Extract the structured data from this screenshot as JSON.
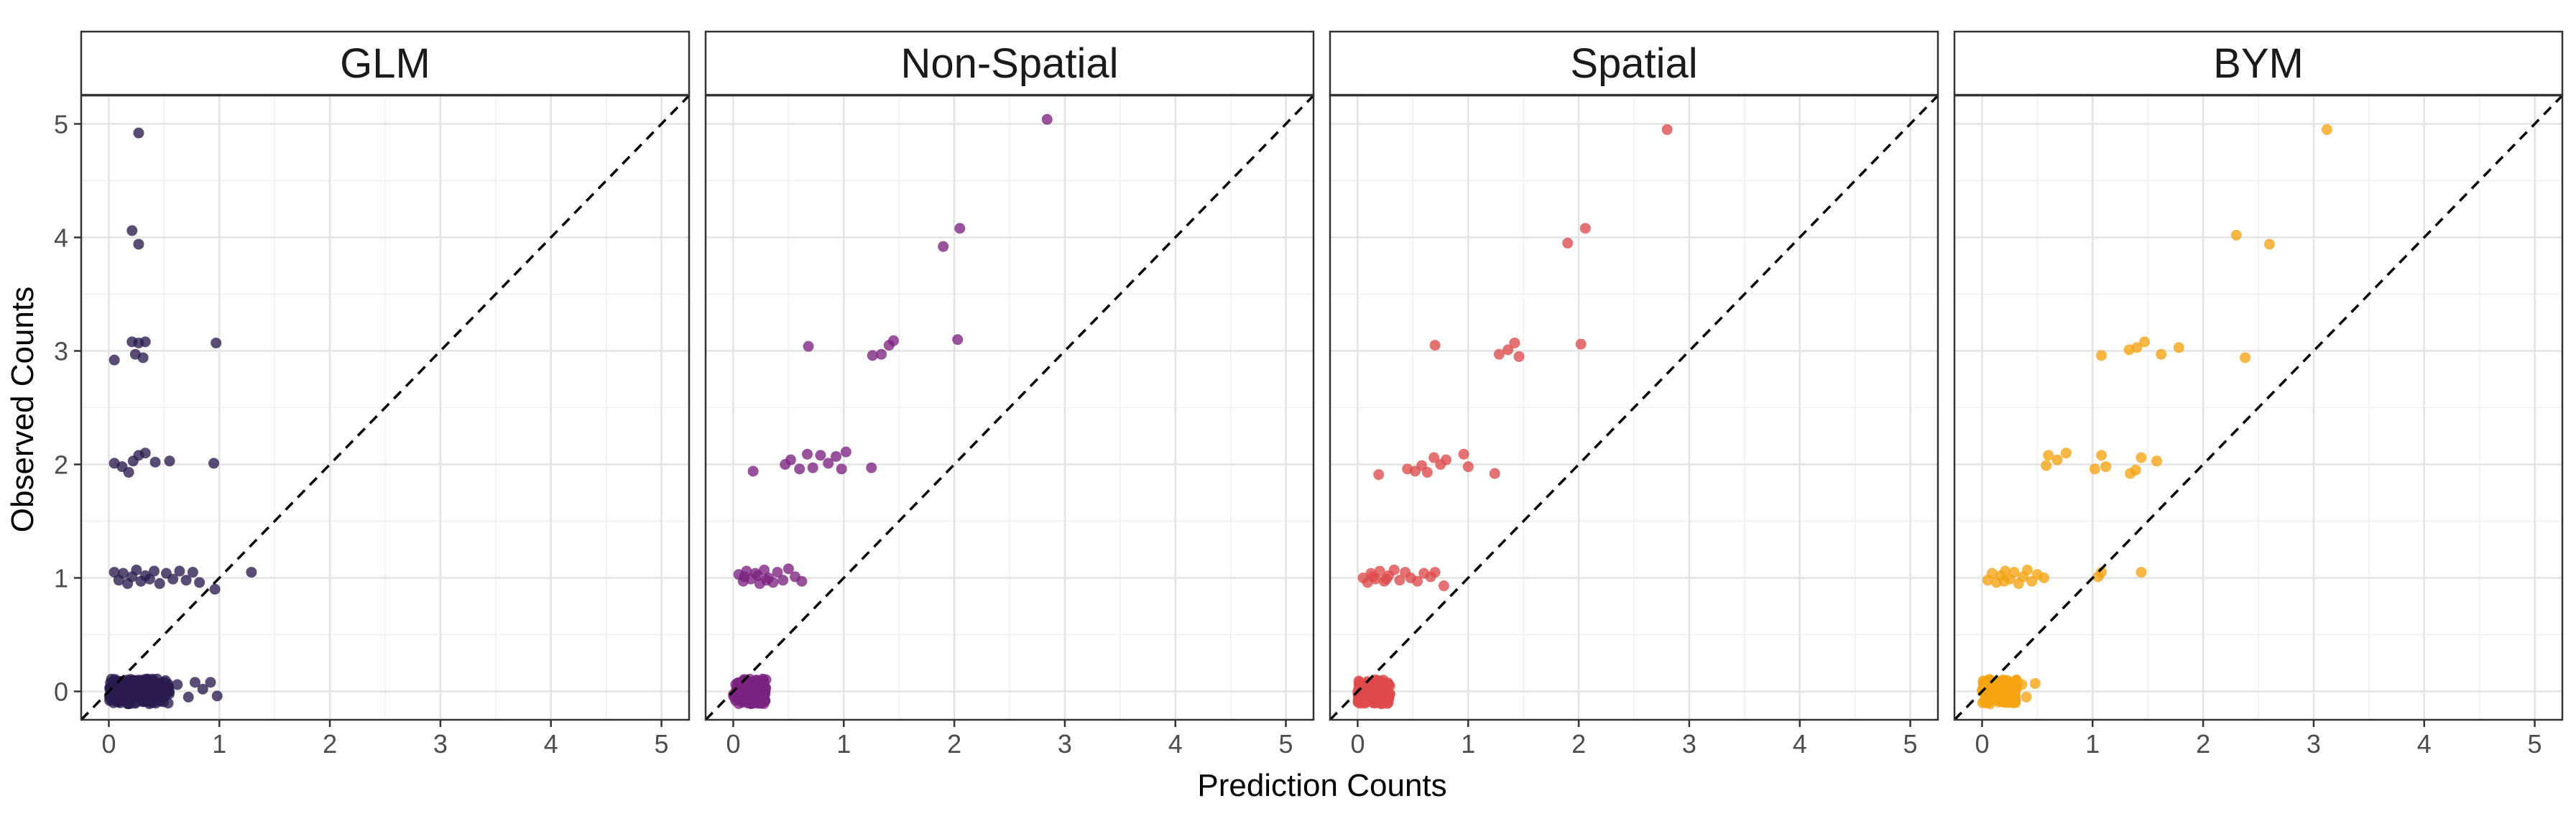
{
  "chart_data": {
    "type": "scatter",
    "xlabel": "Prediction Counts",
    "ylabel": "Observed Counts",
    "xlim": [
      -0.25,
      5.25
    ],
    "ylim": [
      -0.25,
      5.25
    ],
    "x_ticks": [
      "0",
      "1",
      "2",
      "3",
      "4",
      "5"
    ],
    "y_ticks": [
      "0",
      "1",
      "2",
      "3",
      "4",
      "5"
    ],
    "grid": true,
    "reference_line": {
      "type": "y=x",
      "style": "dashed",
      "color": "#000000"
    },
    "legend": "none",
    "panels": [
      {
        "name": "GLM",
        "color": "#2a1b4e",
        "points": [
          [
            0.27,
            4.92
          ],
          [
            0.21,
            4.06
          ],
          [
            0.27,
            3.94
          ],
          [
            0.05,
            2.92
          ],
          [
            0.21,
            3.08
          ],
          [
            0.27,
            3.07
          ],
          [
            0.33,
            3.08
          ],
          [
            0.24,
            2.97
          ],
          [
            0.31,
            2.94
          ],
          [
            0.97,
            3.07
          ],
          [
            0.05,
            2.01
          ],
          [
            0.12,
            1.98
          ],
          [
            0.18,
            1.93
          ],
          [
            0.22,
            2.03
          ],
          [
            0.27,
            2.08
          ],
          [
            0.33,
            2.1
          ],
          [
            0.42,
            2.02
          ],
          [
            0.55,
            2.03
          ],
          [
            0.95,
            2.01
          ],
          [
            1.29,
            1.05
          ],
          [
            0.05,
            1.05
          ],
          [
            0.09,
            0.98
          ],
          [
            0.13,
            1.04
          ],
          [
            0.17,
            0.95
          ],
          [
            0.21,
            1.01
          ],
          [
            0.25,
            1.07
          ],
          [
            0.29,
            0.97
          ],
          [
            0.33,
            1.02
          ],
          [
            0.37,
            0.99
          ],
          [
            0.41,
            1.06
          ],
          [
            0.46,
            0.95
          ],
          [
            0.52,
            1.04
          ],
          [
            0.58,
            0.99
          ],
          [
            0.64,
            1.06
          ],
          [
            0.7,
            0.98
          ],
          [
            0.76,
            1.05
          ],
          [
            0.82,
            0.96
          ],
          [
            0.96,
            0.9
          ]
        ],
        "cluster": {
          "x_range": [
            0.0,
            0.55
          ],
          "y": 0,
          "count": 200
        },
        "outliers_zero": [
          [
            0.62,
            0.06
          ],
          [
            0.72,
            -0.05
          ],
          [
            0.78,
            0.08
          ],
          [
            0.85,
            0.02
          ],
          [
            0.92,
            0.08
          ],
          [
            0.98,
            -0.04
          ]
        ]
      },
      {
        "name": "Non-Spatial",
        "color": "#7b2380",
        "points": [
          [
            2.84,
            5.04
          ],
          [
            2.05,
            4.08
          ],
          [
            1.9,
            3.92
          ],
          [
            2.03,
            3.1
          ],
          [
            0.68,
            3.04
          ],
          [
            1.26,
            2.96
          ],
          [
            1.34,
            2.97
          ],
          [
            1.41,
            3.05
          ],
          [
            1.45,
            3.09
          ],
          [
            0.18,
            1.94
          ],
          [
            0.47,
            2.0
          ],
          [
            0.52,
            2.04
          ],
          [
            0.6,
            1.96
          ],
          [
            0.67,
            2.09
          ],
          [
            0.72,
            1.97
          ],
          [
            0.79,
            2.08
          ],
          [
            0.86,
            2.01
          ],
          [
            0.93,
            2.07
          ],
          [
            0.98,
            1.96
          ],
          [
            1.02,
            2.11
          ],
          [
            1.25,
            1.97
          ],
          [
            0.05,
            1.03
          ],
          [
            0.09,
            0.97
          ],
          [
            0.12,
            1.06
          ],
          [
            0.16,
            0.99
          ],
          [
            0.2,
            1.04
          ],
          [
            0.24,
            0.95
          ],
          [
            0.28,
            1.07
          ],
          [
            0.32,
            1.0
          ],
          [
            0.36,
            0.96
          ],
          [
            0.4,
            1.05
          ],
          [
            0.45,
            0.98
          ],
          [
            0.5,
            1.08
          ],
          [
            0.56,
            1.01
          ],
          [
            0.62,
            0.97
          ],
          [
            0.1,
            1.01
          ],
          [
            0.22,
            1.02
          ],
          [
            0.3,
            0.98
          ]
        ],
        "cluster": {
          "x_range": [
            0.0,
            0.3
          ],
          "y": 0,
          "count": 120
        },
        "outliers_zero": []
      },
      {
        "name": "Spatial",
        "color": "#de4a4a",
        "points": [
          [
            2.8,
            4.95
          ],
          [
            2.06,
            4.08
          ],
          [
            1.9,
            3.95
          ],
          [
            0.7,
            3.05
          ],
          [
            1.28,
            2.97
          ],
          [
            1.36,
            3.01
          ],
          [
            1.42,
            3.07
          ],
          [
            1.46,
            2.95
          ],
          [
            2.02,
            3.06
          ],
          [
            0.19,
            1.91
          ],
          [
            0.45,
            1.96
          ],
          [
            0.52,
            1.94
          ],
          [
            0.58,
            1.99
          ],
          [
            0.63,
            1.93
          ],
          [
            0.69,
            2.06
          ],
          [
            0.75,
            2.0
          ],
          [
            0.8,
            2.04
          ],
          [
            0.96,
            2.09
          ],
          [
            1.0,
            1.98
          ],
          [
            1.24,
            1.92
          ],
          [
            0.05,
            1.0
          ],
          [
            0.09,
            0.96
          ],
          [
            0.12,
            1.04
          ],
          [
            0.16,
            0.99
          ],
          [
            0.2,
            1.06
          ],
          [
            0.24,
            0.97
          ],
          [
            0.28,
            1.02
          ],
          [
            0.33,
            1.07
          ],
          [
            0.38,
            0.98
          ],
          [
            0.43,
            1.05
          ],
          [
            0.48,
            1.0
          ],
          [
            0.54,
            0.97
          ],
          [
            0.6,
            1.04
          ],
          [
            0.66,
            1.01
          ],
          [
            0.7,
            1.05
          ],
          [
            0.78,
            0.93
          ],
          [
            0.14,
            1.01
          ],
          [
            0.26,
            0.99
          ]
        ],
        "cluster": {
          "x_range": [
            0.0,
            0.3
          ],
          "y": 0,
          "count": 120
        },
        "outliers_zero": []
      },
      {
        "name": "BYM",
        "color": "#f5a30f",
        "points": [
          [
            3.12,
            4.95
          ],
          [
            2.3,
            4.02
          ],
          [
            2.6,
            3.94
          ],
          [
            1.08,
            2.96
          ],
          [
            1.33,
            3.01
          ],
          [
            1.4,
            3.03
          ],
          [
            1.47,
            3.08
          ],
          [
            1.62,
            2.97
          ],
          [
            1.78,
            3.03
          ],
          [
            2.38,
            2.94
          ],
          [
            0.6,
            2.08
          ],
          [
            0.68,
            2.04
          ],
          [
            0.76,
            2.1
          ],
          [
            0.58,
            1.99
          ],
          [
            1.02,
            1.96
          ],
          [
            1.08,
            2.08
          ],
          [
            1.12,
            1.98
          ],
          [
            1.34,
            1.92
          ],
          [
            1.39,
            1.95
          ],
          [
            1.44,
            2.06
          ],
          [
            1.58,
            2.03
          ],
          [
            0.05,
            0.98
          ],
          [
            0.09,
            1.04
          ],
          [
            0.13,
            0.96
          ],
          [
            0.17,
            1.02
          ],
          [
            0.21,
            1.06
          ],
          [
            0.25,
            0.99
          ],
          [
            0.29,
            1.05
          ],
          [
            0.33,
            0.95
          ],
          [
            0.37,
            1.01
          ],
          [
            0.41,
            1.07
          ],
          [
            0.45,
            0.97
          ],
          [
            0.5,
            1.03
          ],
          [
            0.56,
            1.0
          ],
          [
            1.05,
            1.01
          ],
          [
            1.08,
            1.05
          ],
          [
            1.44,
            1.05
          ],
          [
            0.2,
            0.97
          ]
        ],
        "cluster": {
          "x_range": [
            0.0,
            0.32
          ],
          "y": 0,
          "count": 120
        },
        "outliers_zero": [
          [
            0.36,
            0.06
          ],
          [
            0.4,
            -0.05
          ],
          [
            0.48,
            0.07
          ],
          [
            0.22,
            -0.09
          ],
          [
            0.3,
            -0.1
          ]
        ]
      }
    ]
  }
}
